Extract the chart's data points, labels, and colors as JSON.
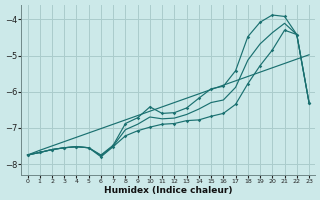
{
  "xlabel": "Humidex (Indice chaleur)",
  "x": [
    0,
    1,
    2,
    3,
    4,
    5,
    6,
    7,
    8,
    9,
    10,
    11,
    12,
    13,
    14,
    15,
    16,
    17,
    18,
    19,
    20,
    21,
    22,
    23
  ],
  "line_jagged_upper": [
    -7.75,
    -7.68,
    -7.6,
    -7.55,
    -7.52,
    -7.55,
    -7.75,
    -7.48,
    -6.88,
    -6.72,
    -6.42,
    -6.6,
    -6.58,
    -6.45,
    -6.18,
    -5.92,
    -5.85,
    -5.42,
    -4.48,
    -4.08,
    -3.88,
    -3.92,
    -4.42,
    -6.3
  ],
  "line_jagged_lower": [
    -7.75,
    -7.68,
    -7.6,
    -7.55,
    -7.52,
    -7.55,
    -7.8,
    -7.52,
    -7.22,
    -7.08,
    -6.98,
    -6.9,
    -6.88,
    -6.8,
    -6.78,
    -6.68,
    -6.6,
    -6.35,
    -5.78,
    -5.28,
    -4.85,
    -4.3,
    -4.42,
    -6.3
  ],
  "line_smooth": [
    -7.75,
    -7.68,
    -7.6,
    -7.55,
    -7.52,
    -7.55,
    -7.77,
    -7.5,
    -7.05,
    -6.9,
    -6.7,
    -6.75,
    -6.73,
    -6.63,
    -6.48,
    -6.3,
    -6.23,
    -5.88,
    -5.13,
    -4.68,
    -4.37,
    -4.11,
    -4.42,
    -6.3
  ],
  "line_diagonal": [
    -7.75,
    -7.62,
    -7.5,
    -7.38,
    -7.26,
    -7.14,
    -7.02,
    -6.9,
    -6.78,
    -6.66,
    -6.54,
    -6.42,
    -6.3,
    -6.18,
    -6.06,
    -5.94,
    -5.82,
    -5.7,
    -5.58,
    -5.46,
    -5.34,
    -5.22,
    -5.1,
    -4.98
  ],
  "bg_color": "#cce9e9",
  "grid_color": "#aacccc",
  "line_color": "#1a7070",
  "ylim": [
    -8.3,
    -3.6
  ],
  "xlim": [
    -0.5,
    23.5
  ],
  "yticks": [
    -8,
    -7,
    -6,
    -5,
    -4
  ],
  "xticks": [
    0,
    1,
    2,
    3,
    4,
    5,
    6,
    7,
    8,
    9,
    10,
    11,
    12,
    13,
    14,
    15,
    16,
    17,
    18,
    19,
    20,
    21,
    22,
    23
  ]
}
